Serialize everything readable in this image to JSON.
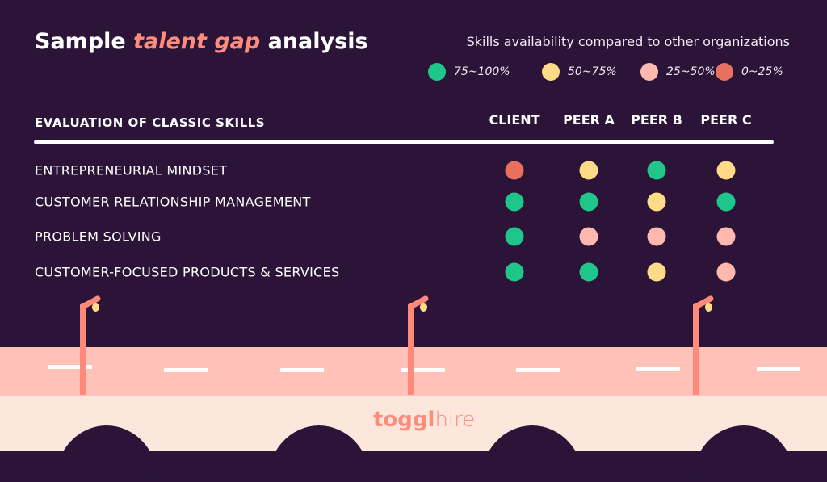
{
  "title": {
    "pre": "Sample ",
    "highlight": "talent gap",
    "post": " analysis"
  },
  "chart_data": {
    "type": "table",
    "legend_title": "Skills availability compared to other organizations",
    "legend": [
      {
        "label": "75~100%",
        "color": "#1fc68a"
      },
      {
        "label": "50~75%",
        "color": "#ffdb87"
      },
      {
        "label": "25~50%",
        "color": "#ffb8ae"
      },
      {
        "label": "0~25%",
        "color": "#e8705f"
      }
    ],
    "row_header": "EVALUATION OF CLASSIC SKILLS",
    "columns": [
      "CLIENT",
      "PEER A",
      "PEER B",
      "PEER C"
    ],
    "rows": [
      {
        "label": "ENTREPRENEURIAL MINDSET",
        "values": [
          "0~25%",
          "50~75%",
          "75~100%",
          "50~75%"
        ]
      },
      {
        "label": "CUSTOMER RELATIONSHIP MANAGEMENT",
        "values": [
          "75~100%",
          "75~100%",
          "50~75%",
          "75~100%"
        ]
      },
      {
        "label": "PROBLEM SOLVING",
        "values": [
          "75~100%",
          "25~50%",
          "25~50%",
          "25~50%"
        ]
      },
      {
        "label": "CUSTOMER-FOCUSED PRODUCTS & SERVICES",
        "values": [
          "75~100%",
          "75~100%",
          "50~75%",
          "25~50%"
        ]
      }
    ]
  },
  "logo": {
    "brand": "toggl",
    "product": "hire"
  }
}
